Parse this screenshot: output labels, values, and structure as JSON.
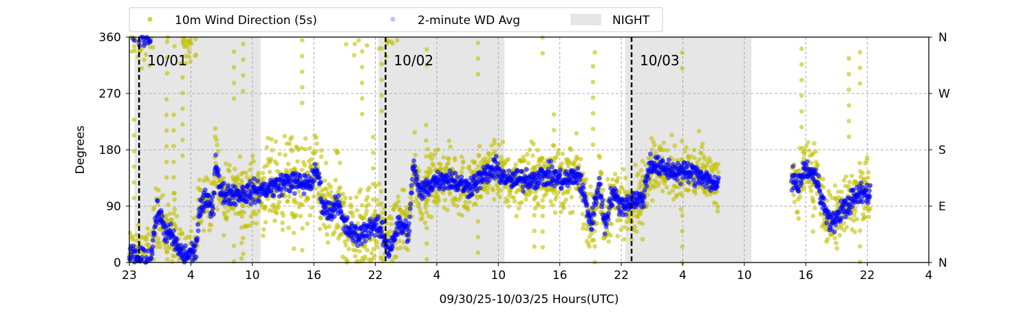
{
  "chart_data": {
    "type": "scatter",
    "title": "",
    "xlabel": "09/30/25-10/03/25  Hours(UTC)",
    "ylabel": "Degrees",
    "xlim_hours": [
      0,
      78
    ],
    "ylim": [
      0,
      360
    ],
    "x_tick_labels": [
      "23",
      "4",
      "10",
      "16",
      "22",
      "4",
      "10",
      "16",
      "22",
      "4",
      "10",
      "16",
      "22",
      "4"
    ],
    "x_tick_step_hours": 6,
    "y_ticks": [
      0,
      90,
      180,
      270,
      360
    ],
    "y_right_labels": [
      "N",
      "E",
      "S",
      "W",
      "N"
    ],
    "grid": true,
    "legend": {
      "placement": "top-center",
      "entries": [
        "10m Wind Direction (5s)",
        "2-minute WD Avg",
        "NIGHT"
      ]
    },
    "night_periods_hours": [
      [
        0.5,
        12.8
      ],
      [
        24.3,
        36.6
      ],
      [
        48.4,
        60.7
      ]
    ],
    "date_markers": [
      {
        "hour": 0.95,
        "label": "10/01"
      },
      {
        "hour": 25.0,
        "label": "10/02"
      },
      {
        "hour": 49.0,
        "label": "10/03"
      }
    ],
    "series": [
      {
        "name": "2-minute WD Avg",
        "color": "#0000ff",
        "trend_hours": [
          0,
          0.8,
          2.1,
          2.5,
          2.8,
          3.5,
          4.2,
          4.8,
          5.4,
          6.5,
          6.8,
          7.5,
          8.2,
          8.4,
          8.9,
          10.9,
          12.9,
          15.6,
          16.9,
          17.9,
          18.3,
          18.9,
          19.6,
          20.3,
          20.9,
          22.3,
          23.6,
          24.6,
          25.3,
          26.3,
          27.3,
          27.7,
          28.3,
          29.7,
          31,
          33,
          35.7,
          37,
          39.7,
          41.1,
          42.4,
          43.8,
          45.1,
          45.8,
          46.4,
          47.1,
          48.1,
          49.1,
          50.1,
          50.8,
          51.8,
          53.8,
          55.8,
          57.5,
          null,
          64.6,
          65.2,
          65.9,
          66.6,
          67.2,
          67.9,
          68.6,
          69.3,
          70.6,
          71.3,
          72.3
        ],
        "trend_degrees": [
          10,
          5,
          5,
          60,
          85,
          50,
          40,
          20,
          10,
          20,
          80,
          100,
          90,
          170,
          110,
          110,
          115,
          130,
          125,
          130,
          150,
          90,
          80,
          100,
          60,
          40,
          60,
          50,
          20,
          60,
          50,
          160,
          110,
          130,
          135,
          120,
          150,
          130,
          135,
          140,
          130,
          140,
          60,
          130,
          60,
          110,
          90,
          100,
          100,
          160,
          150,
          145,
          140,
          120,
          null,
          140,
          120,
          150,
          140,
          130,
          80,
          60,
          80,
          100,
          110,
          110
        ]
      },
      {
        "name": "10m Wind Direction (5s)",
        "color": "#bfbf00",
        "spread_degrees": 35
      }
    ]
  }
}
